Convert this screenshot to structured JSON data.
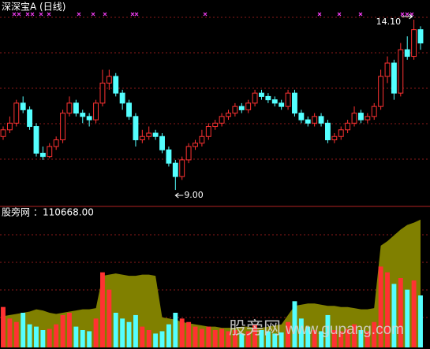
{
  "chart_data": {
    "type": "candlestick",
    "title": "深深宝A (日线)",
    "candles": [
      [
        10.6,
        10.9,
        10.5,
        10.8
      ],
      [
        10.8,
        11.2,
        10.7,
        11.0
      ],
      [
        11.0,
        11.7,
        10.9,
        11.6
      ],
      [
        11.6,
        11.8,
        11.3,
        11.4
      ],
      [
        11.4,
        11.5,
        10.8,
        10.9
      ],
      [
        10.9,
        11.0,
        10.0,
        10.1
      ],
      [
        10.1,
        10.3,
        9.9,
        10.0
      ],
      [
        10.0,
        10.4,
        9.95,
        10.3
      ],
      [
        10.3,
        10.6,
        10.2,
        10.5
      ],
      [
        10.5,
        11.4,
        10.4,
        11.3
      ],
      [
        11.3,
        11.8,
        11.2,
        11.6
      ],
      [
        11.6,
        11.7,
        11.2,
        11.3
      ],
      [
        11.3,
        11.4,
        11.0,
        11.2
      ],
      [
        11.2,
        11.3,
        10.9,
        11.1
      ],
      [
        11.1,
        11.7,
        11.0,
        11.6
      ],
      [
        11.6,
        12.6,
        11.5,
        12.2
      ],
      [
        12.2,
        12.6,
        12.0,
        12.4
      ],
      [
        12.4,
        12.5,
        11.8,
        11.9
      ],
      [
        11.9,
        12.0,
        11.4,
        11.6
      ],
      [
        11.6,
        11.7,
        11.1,
        11.2
      ],
      [
        11.2,
        11.3,
        10.3,
        10.5
      ],
      [
        10.5,
        10.8,
        10.4,
        10.6
      ],
      [
        10.6,
        10.9,
        10.5,
        10.7
      ],
      [
        10.7,
        10.8,
        10.5,
        10.6
      ],
      [
        10.6,
        10.7,
        10.1,
        10.2
      ],
      [
        10.2,
        10.3,
        9.7,
        9.8
      ],
      [
        9.8,
        9.9,
        9.0,
        9.4
      ],
      [
        9.4,
        10.0,
        9.3,
        9.9
      ],
      [
        9.9,
        10.4,
        9.8,
        10.3
      ],
      [
        10.3,
        10.5,
        10.2,
        10.4
      ],
      [
        10.4,
        10.8,
        10.3,
        10.6
      ],
      [
        10.6,
        11.0,
        10.5,
        10.9
      ],
      [
        10.9,
        11.1,
        10.8,
        11.0
      ],
      [
        11.0,
        11.3,
        10.9,
        11.2
      ],
      [
        11.2,
        11.4,
        11.1,
        11.3
      ],
      [
        11.3,
        11.6,
        11.2,
        11.5
      ],
      [
        11.5,
        11.6,
        11.3,
        11.4
      ],
      [
        11.4,
        11.7,
        11.3,
        11.6
      ],
      [
        11.6,
        12.0,
        11.5,
        11.9
      ],
      [
        11.9,
        12.0,
        11.7,
        11.8
      ],
      [
        11.8,
        11.9,
        11.6,
        11.7
      ],
      [
        11.7,
        11.8,
        11.5,
        11.6
      ],
      [
        11.6,
        11.7,
        11.4,
        11.5
      ],
      [
        11.5,
        12.0,
        11.4,
        11.9
      ],
      [
        11.9,
        12.0,
        11.2,
        11.3
      ],
      [
        11.3,
        11.4,
        11.0,
        11.1
      ],
      [
        11.1,
        11.2,
        10.9,
        11.0
      ],
      [
        11.0,
        11.3,
        10.9,
        11.2
      ],
      [
        11.2,
        11.3,
        10.9,
        11.0
      ],
      [
        11.0,
        11.1,
        10.4,
        10.5
      ],
      [
        10.5,
        10.7,
        10.4,
        10.6
      ],
      [
        10.6,
        10.9,
        10.5,
        10.8
      ],
      [
        10.8,
        11.1,
        10.7,
        11.0
      ],
      [
        11.0,
        11.5,
        10.9,
        11.3
      ],
      [
        11.3,
        11.4,
        11.0,
        11.1
      ],
      [
        11.1,
        11.3,
        11.0,
        11.2
      ],
      [
        11.2,
        11.6,
        11.1,
        11.5
      ],
      [
        11.5,
        12.6,
        11.4,
        12.4
      ],
      [
        12.4,
        13.0,
        12.2,
        12.8
      ],
      [
        12.8,
        12.9,
        11.7,
        11.9
      ],
      [
        11.9,
        13.4,
        11.8,
        13.2
      ],
      [
        13.2,
        13.6,
        12.9,
        13.0
      ],
      [
        13.0,
        14.1,
        12.9,
        13.8
      ],
      [
        13.8,
        13.9,
        13.2,
        13.4
      ]
    ],
    "ylim": [
      8.6,
      14.5
    ],
    "up_color": "#ff3232",
    "down_color": "#54ffff",
    "high_label": {
      "value": 14.1,
      "label": "14.10"
    },
    "low_label": {
      "value": 9.0,
      "label": "9.00"
    },
    "indicator_title": "股旁网 ：",
    "indicator_value": {
      "value": 110668,
      "label": "110668.00"
    },
    "volume": [
      35000,
      25000,
      22000,
      30000,
      20000,
      18000,
      15000,
      16000,
      20000,
      28000,
      30000,
      18000,
      15000,
      14000,
      25000,
      65000,
      50000,
      30000,
      25000,
      22000,
      28000,
      18000,
      15000,
      12000,
      14000,
      20000,
      30000,
      25000,
      22000,
      18000,
      16000,
      18000,
      15000,
      16000,
      14000,
      15000,
      12000,
      14000,
      20000,
      15000,
      14000,
      12000,
      13000,
      22000,
      40000,
      25000,
      18000,
      15000,
      14000,
      28000,
      15000,
      14000,
      16000,
      20000,
      15000,
      14000,
      22000,
      70000,
      65000,
      55000,
      60000,
      50000,
      58000,
      45000
    ],
    "area": [
      27000,
      28000,
      29000,
      30000,
      31000,
      33000,
      32000,
      30000,
      29000,
      30000,
      31000,
      32000,
      33000,
      33000,
      34000,
      62000,
      63000,
      64000,
      63000,
      62000,
      62000,
      63000,
      63000,
      62000,
      26000,
      25000,
      24000,
      22000,
      21000,
      20000,
      19000,
      18000,
      18000,
      17000,
      17000,
      17000,
      18000,
      18000,
      17000,
      17000,
      18000,
      19000,
      20000,
      28000,
      36000,
      37000,
      38000,
      38000,
      37000,
      36000,
      36000,
      35000,
      35000,
      34000,
      33000,
      33000,
      34000,
      88000,
      92000,
      97000,
      102000,
      106000,
      108000,
      110668
    ],
    "area_color": "#808000",
    "y2lim": [
      0,
      120000
    ],
    "watermark_name": "股旁网",
    "watermark_url": "www.gupang.com"
  }
}
